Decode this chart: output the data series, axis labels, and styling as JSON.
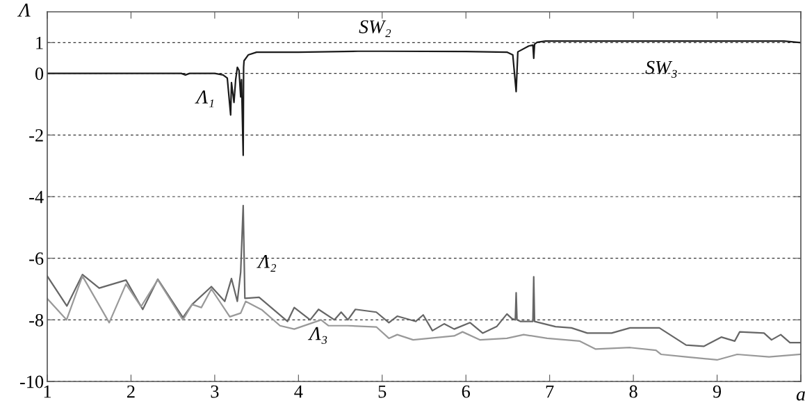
{
  "chart_data": {
    "type": "line",
    "xlabel": "a",
    "ylabel": "Λ",
    "xlim": [
      1,
      10
    ],
    "ylim": [
      -10,
      2
    ],
    "xticks": [
      1,
      2,
      3,
      4,
      5,
      6,
      7,
      8,
      9,
      {
        "value": 10,
        "label": null
      }
    ],
    "yticks": [
      1,
      0,
      -2,
      -4,
      -6,
      -8,
      -10
    ],
    "grid": "y",
    "line_style": "solid",
    "marker": "none",
    "series": [
      {
        "color": "#1a1a1a",
        "x": [
          1,
          1.5,
          2,
          2.5,
          2.6,
          2.65,
          2.7,
          3.0,
          3.1,
          3.15,
          3.19,
          3.2,
          3.23,
          3.25,
          3.27,
          3.29,
          3.31,
          3.32,
          3.34,
          3.345,
          3.35,
          3.4,
          3.5,
          4.0,
          4.71,
          5.0,
          6.0,
          6.49,
          6.56,
          6.6,
          6.62,
          6.75,
          6.8,
          6.81,
          6.82,
          6.85,
          6.95,
          8.0,
          9.0,
          9.8,
          10
        ],
        "values": [
          0,
          0,
          0,
          0,
          0,
          -0.05,
          0,
          0,
          -0.05,
          -0.15,
          -1.35,
          -0.3,
          -0.94,
          -0.2,
          0.2,
          0.1,
          -0.76,
          -0.2,
          -2.66,
          0.2,
          0.41,
          0.6,
          0.69,
          0.69,
          0.72,
          0.72,
          0.71,
          0.69,
          0.6,
          -0.59,
          0.7,
          0.89,
          0.92,
          0.49,
          0.95,
          1.01,
          1.05,
          1.05,
          1.05,
          1.05,
          1.0
        ]
      },
      {
        "color": "#666666",
        "x": [
          1,
          1.234,
          1.42,
          1.62,
          1.94,
          2.14,
          2.32,
          2.62,
          2.73,
          2.96,
          3.12,
          3.2,
          3.27,
          3.31,
          3.34,
          3.36,
          3.53,
          3.87,
          3.95,
          4.14,
          4.24,
          4.43,
          4.51,
          4.59,
          4.68,
          4.93,
          5.08,
          5.18,
          5.4,
          5.49,
          5.6,
          5.74,
          5.86,
          6.05,
          6.2,
          6.37,
          6.49,
          6.55,
          6.59,
          6.6,
          6.61,
          6.65,
          6.8,
          6.81,
          6.82,
          7.07,
          7.26,
          7.45,
          7.74,
          7.96,
          8.31,
          8.63,
          8.84,
          9.05,
          9.21,
          9.27,
          9.56,
          9.65,
          9.76,
          9.87,
          10
        ],
        "values": [
          -6.58,
          -7.55,
          -6.53,
          -6.97,
          -6.71,
          -7.66,
          -6.68,
          -7.92,
          -7.5,
          -6.92,
          -7.4,
          -6.66,
          -7.4,
          -6.45,
          -4.29,
          -7.3,
          -7.27,
          -8.05,
          -7.6,
          -8.0,
          -7.66,
          -8.0,
          -7.75,
          -8.0,
          -7.66,
          -7.75,
          -8.09,
          -7.88,
          -8.05,
          -7.84,
          -8.35,
          -8.13,
          -8.3,
          -8.09,
          -8.43,
          -8.21,
          -7.81,
          -7.96,
          -8.0,
          -7.12,
          -8.0,
          -8.05,
          -8.05,
          -6.6,
          -8.05,
          -8.22,
          -8.26,
          -8.43,
          -8.43,
          -8.26,
          -8.26,
          -8.82,
          -8.86,
          -8.56,
          -8.69,
          -8.39,
          -8.43,
          -8.65,
          -8.48,
          -8.74,
          -8.74
        ]
      },
      {
        "color": "#999999",
        "x": [
          1,
          1.23,
          1.42,
          1.74,
          1.94,
          2.12,
          2.32,
          2.62,
          2.73,
          2.84,
          2.96,
          3.18,
          3.31,
          3.37,
          3.56,
          3.78,
          3.95,
          4.27,
          4.36,
          4.59,
          4.93,
          5.08,
          5.18,
          5.37,
          5.86,
          5.96,
          6.17,
          6.49,
          6.69,
          6.97,
          7.36,
          7.55,
          7.96,
          8.27,
          8.33,
          8.63,
          9.0,
          9.24,
          9.62,
          10
        ],
        "values": [
          -7.31,
          -8.0,
          -6.58,
          -8.09,
          -6.84,
          -7.57,
          -6.7,
          -8.0,
          -7.5,
          -7.6,
          -7.0,
          -7.9,
          -7.78,
          -7.4,
          -7.67,
          -8.19,
          -8.3,
          -8.0,
          -8.19,
          -8.19,
          -8.23,
          -8.6,
          -8.48,
          -8.65,
          -8.52,
          -8.39,
          -8.65,
          -8.6,
          -8.48,
          -8.6,
          -8.69,
          -8.95,
          -8.9,
          -8.99,
          -9.12,
          -9.2,
          -9.3,
          -9.12,
          -9.2,
          -9.12
        ]
      }
    ],
    "annotations": [
      "SW₂",
      "SW₃",
      "Λ₁",
      "Λ₂",
      "Λ₃"
    ]
  }
}
